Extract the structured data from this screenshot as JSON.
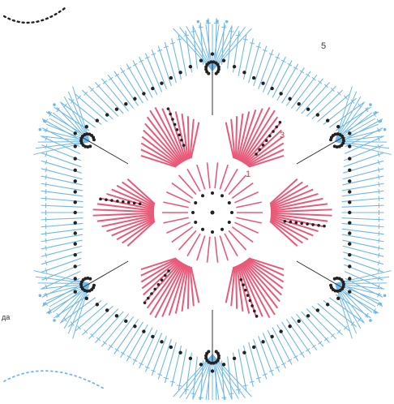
{
  "diagram": {
    "round_labels": [
      {
        "id": "round-1",
        "text": "1",
        "color": "#e0303c"
      },
      {
        "id": "round-3",
        "text": "3",
        "color": "#e0303c"
      },
      {
        "id": "round-5",
        "text": "5",
        "color": "#3a3a3a"
      }
    ],
    "edge_text": {
      "left_fragment": "да"
    },
    "colors": {
      "blue": "#6fb8e8",
      "pink": "#e85a78",
      "dark": "#222222",
      "line": "#333333"
    },
    "motif": {
      "petals": 6,
      "picots": 6
    }
  }
}
